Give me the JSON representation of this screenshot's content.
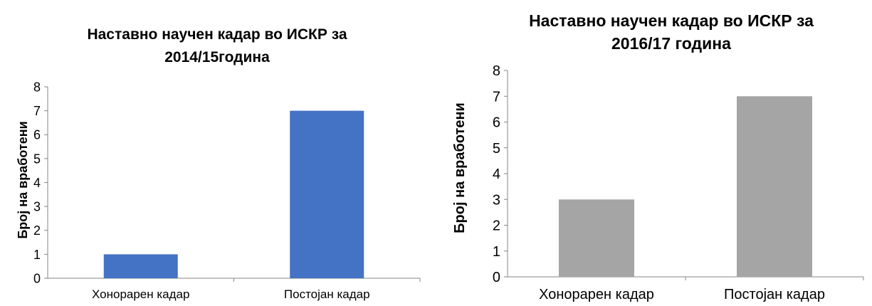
{
  "chart_data": [
    {
      "type": "bar",
      "title_lines": [
        "Наставно научен кадар во ИСКР за",
        "2014/15година"
      ],
      "ylabel": "Број на вработени",
      "xlabel": "",
      "categories": [
        "Хонорарен кадар",
        "Постојан кадар"
      ],
      "values": [
        1,
        7
      ],
      "ylim": [
        0,
        8
      ],
      "yticks": [
        "0",
        "1",
        "2",
        "3",
        "4",
        "5",
        "6",
        "7",
        "8"
      ],
      "bar_color": "#4472c4",
      "grid": false
    },
    {
      "type": "bar",
      "title_lines": [
        "Наставно научен кадар во ИСКР за",
        "2016/17 година"
      ],
      "ylabel": "Број на вработени",
      "xlabel": "",
      "categories": [
        "Хонорарен кадар",
        "Постојан кадар"
      ],
      "values": [
        3,
        7
      ],
      "ylim": [
        0,
        8
      ],
      "yticks": [
        "0",
        "1",
        "2",
        "3",
        "4",
        "5",
        "6",
        "7",
        "8"
      ],
      "bar_color": "#a5a5a5",
      "grid": false
    }
  ]
}
